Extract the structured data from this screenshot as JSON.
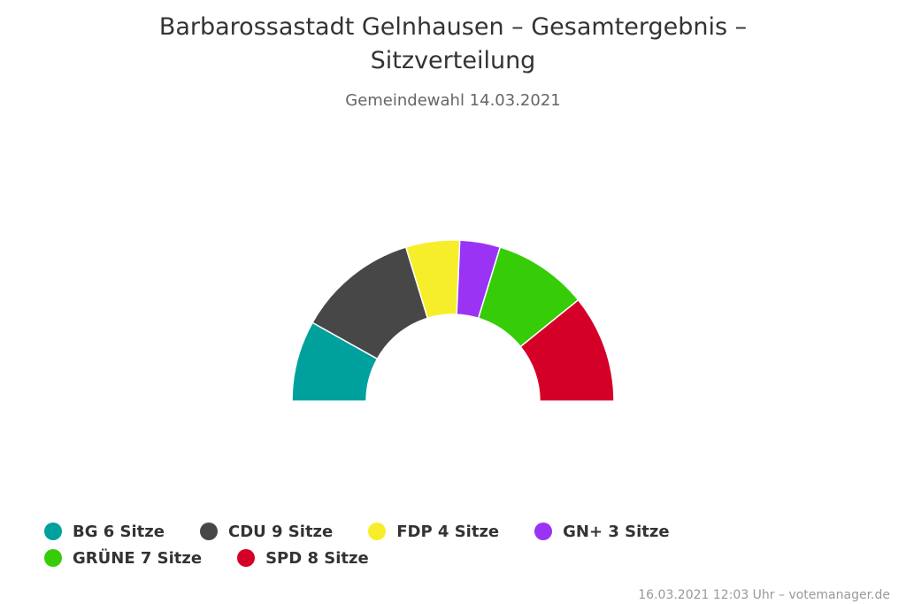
{
  "title": "Barbarossastadt Gelnhausen – Gesamtergebnis – Sitzverteilung",
  "subtitle": "Gemeindewahl 14.03.2021",
  "credits": "16.03.2021 12:03 Uhr – votemanager.de",
  "chart_data": {
    "type": "pie",
    "variant": "parliament-semicircle",
    "title": "Barbarossastadt Gelnhausen – Gesamtergebnis – Sitzverteilung",
    "subtitle": "Gemeindewahl 14.03.2021",
    "unit": "Sitze",
    "legend_position": "bottom",
    "series": [
      {
        "name": "BG",
        "value": 6,
        "color": "#00a19d",
        "legend": "BG 6 Sitze"
      },
      {
        "name": "CDU",
        "value": 9,
        "color": "#474747",
        "legend": "CDU 9 Sitze"
      },
      {
        "name": "FDP",
        "value": 4,
        "color": "#f7ee2b",
        "legend": "FDP 4 Sitze"
      },
      {
        "name": "GN+",
        "value": 3,
        "color": "#9a33f4",
        "legend": "GN+ 3 Sitze"
      },
      {
        "name": "GRÜNE",
        "value": 7,
        "color": "#37cc08",
        "legend": "GRÜNE 7 Sitze"
      },
      {
        "name": "SPD",
        "value": 8,
        "color": "#d50027",
        "legend": "SPD 8 Sitze"
      }
    ]
  }
}
